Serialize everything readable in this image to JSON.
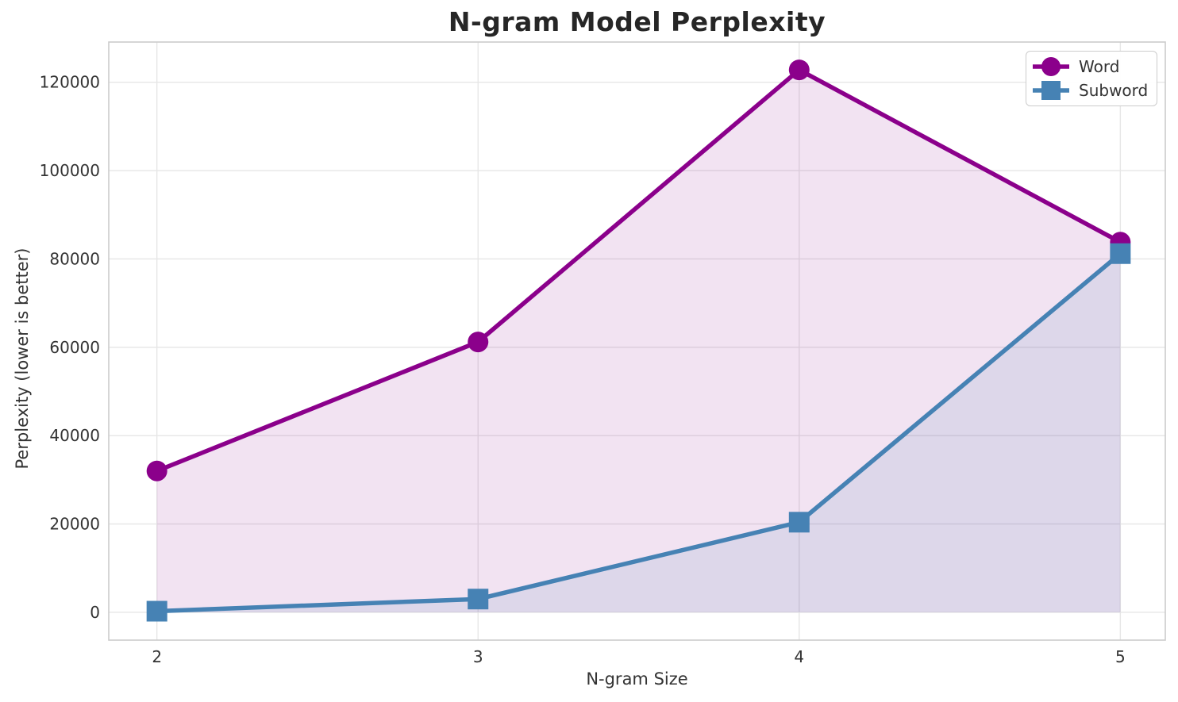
{
  "chart_data": {
    "type": "line",
    "title": "N-gram Model Perplexity",
    "xlabel": "N-gram Size",
    "ylabel": "Perplexity (lower is better)",
    "x": [
      2,
      3,
      4,
      5
    ],
    "series": [
      {
        "name": "Word",
        "values": [
          32000,
          61200,
          122800,
          83800
        ],
        "color": "#8B008B",
        "marker": "circle",
        "area_fill_to_zero": true
      },
      {
        "name": "Subword",
        "values": [
          250,
          3000,
          20400,
          81200
        ],
        "color": "#4682B4",
        "marker": "square",
        "area_fill_to_zero": true
      }
    ],
    "xticks": [
      2,
      3,
      4,
      5
    ],
    "yticks": [
      0,
      20000,
      40000,
      60000,
      80000,
      100000,
      120000
    ],
    "xlim": [
      1.85,
      5.14
    ],
    "ylim": [
      -6300,
      129100
    ],
    "grid": true,
    "legend_position": "upper right",
    "grid_color": "#e6e6e6",
    "spine_color": "#cccccc",
    "tick_color": "#333333",
    "fill_opacity": [
      0.11,
      0.12
    ],
    "line_width": 5.5,
    "marker_size": 26
  }
}
